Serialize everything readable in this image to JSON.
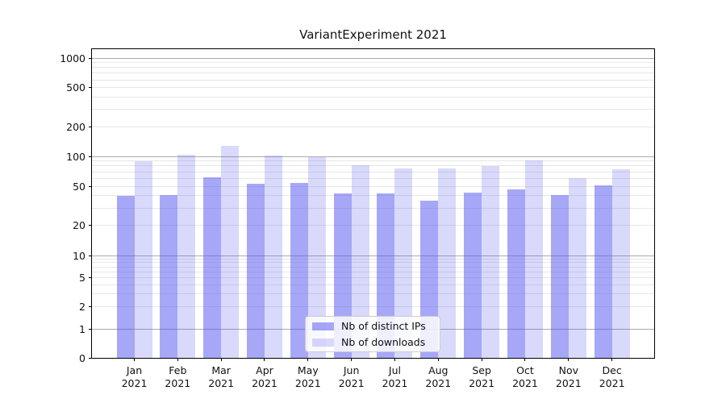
{
  "title": "VariantExperiment 2021",
  "chart_data": {
    "type": "bar",
    "title": "VariantExperiment 2021",
    "categories": [
      "Jan\n2021",
      "Feb\n2021",
      "Mar\n2021",
      "Apr\n2021",
      "May\n2021",
      "Jun\n2021",
      "Jul\n2021",
      "Aug\n2021",
      "Sep\n2021",
      "Oct\n2021",
      "Nov\n2021",
      "Dec\n2021"
    ],
    "series": [
      {
        "name": "Nb of distinct IPs",
        "color": "rgba(80,80,240,0.5)",
        "values": [
          40,
          41,
          62,
          53,
          54,
          42,
          42,
          36,
          43,
          46,
          41,
          51
        ]
      },
      {
        "name": "Nb of downloads",
        "color": "rgba(80,80,240,0.22)",
        "values": [
          90,
          103,
          128,
          102,
          98,
          81,
          75,
          76,
          80,
          91,
          60,
          74
        ]
      }
    ],
    "xlabel": "",
    "ylabel": "",
    "yscale": "symlog",
    "ylim": [
      0,
      1000
    ],
    "yticks": [
      0,
      1,
      2,
      5,
      10,
      20,
      50,
      100,
      200,
      500,
      1000
    ],
    "major_gridlines": [
      1,
      10,
      100,
      1000
    ],
    "minor_gridlines": [
      2,
      3,
      4,
      5,
      6,
      7,
      8,
      9,
      20,
      30,
      40,
      50,
      60,
      70,
      80,
      90,
      200,
      300,
      400,
      500,
      600,
      700,
      800,
      900
    ],
    "grid": true,
    "legend_position": "lower center",
    "colors": {
      "major_grid": "#ababab",
      "minor_grid": "#e7e7e7",
      "spine": "#000000",
      "background": "#ffffff"
    }
  }
}
